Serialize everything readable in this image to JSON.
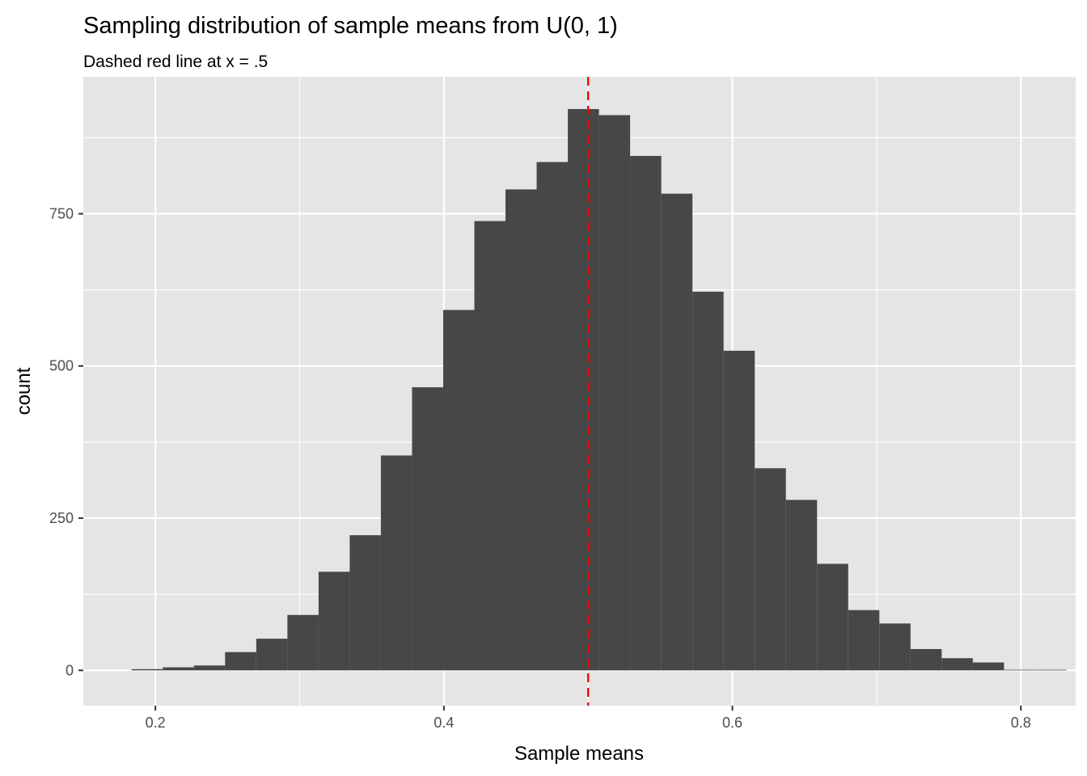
{
  "chart_data": {
    "type": "bar",
    "title": "Sampling distribution of sample means from U(0, 1)",
    "subtitle": "Dashed red line at x = .5",
    "xlabel": "Sample means",
    "ylabel": "count",
    "xlim": [
      0.15,
      0.838
    ],
    "ylim": [
      -58,
      975
    ],
    "x_ticks": [
      0.2,
      0.4,
      0.6,
      0.8
    ],
    "x_tick_labels": [
      "0.2",
      "0.4",
      "0.6",
      "0.8"
    ],
    "y_ticks": [
      0,
      250,
      500,
      750
    ],
    "y_tick_labels": [
      "0",
      "250",
      "500",
      "750"
    ],
    "bin_width": 0.0216,
    "bins": [
      {
        "start": 0.1835,
        "end": 0.2051,
        "count": 2
      },
      {
        "start": 0.2051,
        "end": 0.2267,
        "count": 5
      },
      {
        "start": 0.2267,
        "end": 0.2483,
        "count": 8
      },
      {
        "start": 0.2483,
        "end": 0.2699,
        "count": 30
      },
      {
        "start": 0.2699,
        "end": 0.2915,
        "count": 52
      },
      {
        "start": 0.2915,
        "end": 0.3131,
        "count": 91
      },
      {
        "start": 0.3131,
        "end": 0.3347,
        "count": 162
      },
      {
        "start": 0.3347,
        "end": 0.3563,
        "count": 222
      },
      {
        "start": 0.3563,
        "end": 0.3779,
        "count": 353
      },
      {
        "start": 0.3779,
        "end": 0.3995,
        "count": 465
      },
      {
        "start": 0.3995,
        "end": 0.4211,
        "count": 592
      },
      {
        "start": 0.4211,
        "end": 0.4427,
        "count": 738
      },
      {
        "start": 0.4427,
        "end": 0.4643,
        "count": 790
      },
      {
        "start": 0.4643,
        "end": 0.4859,
        "count": 835
      },
      {
        "start": 0.4859,
        "end": 0.5075,
        "count": 922
      },
      {
        "start": 0.5075,
        "end": 0.5291,
        "count": 912
      },
      {
        "start": 0.5291,
        "end": 0.5507,
        "count": 845
      },
      {
        "start": 0.5507,
        "end": 0.5723,
        "count": 783
      },
      {
        "start": 0.5723,
        "end": 0.5939,
        "count": 622
      },
      {
        "start": 0.5939,
        "end": 0.6155,
        "count": 525
      },
      {
        "start": 0.6155,
        "end": 0.6371,
        "count": 332
      },
      {
        "start": 0.6371,
        "end": 0.6587,
        "count": 280
      },
      {
        "start": 0.6587,
        "end": 0.6803,
        "count": 175
      },
      {
        "start": 0.6803,
        "end": 0.7019,
        "count": 99
      },
      {
        "start": 0.7019,
        "end": 0.7235,
        "count": 77
      },
      {
        "start": 0.7235,
        "end": 0.7451,
        "count": 35
      },
      {
        "start": 0.7451,
        "end": 0.7667,
        "count": 20
      },
      {
        "start": 0.7667,
        "end": 0.7883,
        "count": 13
      },
      {
        "start": 0.7883,
        "end": 0.8099,
        "count": 1
      },
      {
        "start": 0.8099,
        "end": 0.8315,
        "count": 1
      }
    ],
    "reference_line": {
      "x": 0.5,
      "style": "dashed",
      "color": "#FF0000"
    },
    "grid": true,
    "legend": "none",
    "colors": {
      "panel_background": "#E5E5E5",
      "grid_line": "#FFFFFF",
      "bar_fill": "#474747",
      "tick_text": "#4D4D4D",
      "tick_mark": "#333333",
      "text": "#000000"
    }
  }
}
